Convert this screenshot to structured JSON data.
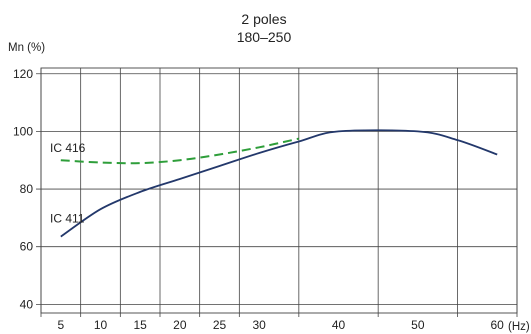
{
  "chart_data": {
    "type": "line",
    "title": "2 poles",
    "subtitle": "180–250",
    "ylabel": "Mn (%)",
    "xlabel": "(Hz)",
    "xlim": [
      2.5,
      62.5
    ],
    "ylim": [
      37,
      122
    ],
    "x_ticks": [
      5,
      10,
      15,
      20,
      25,
      30,
      40,
      50,
      60
    ],
    "x_tick_labels": [
      "5",
      "10",
      "15",
      "20",
      "25",
      "30",
      "40",
      "50",
      "60"
    ],
    "y_ticks": [
      40,
      60,
      80,
      100,
      120
    ],
    "y_tick_labels": [
      "40",
      "60",
      "80",
      "100",
      "120"
    ],
    "grid": true,
    "series": [
      {
        "name": "IC 416",
        "color": "#2e9e3a",
        "style": "dashed",
        "x": [
          5,
          10,
          15,
          20,
          25,
          30,
          35
        ],
        "y": [
          90,
          89.2,
          89,
          90,
          92,
          94.5,
          97.5
        ]
      },
      {
        "name": "IC 411",
        "color": "#23386b",
        "style": "solid",
        "x": [
          5,
          10,
          15,
          20,
          25,
          30,
          35,
          40,
          50,
          55,
          60
        ],
        "y": [
          63.5,
          73,
          79,
          83.5,
          88,
          92.5,
          96.5,
          100,
          100,
          97,
          92
        ]
      }
    ]
  }
}
